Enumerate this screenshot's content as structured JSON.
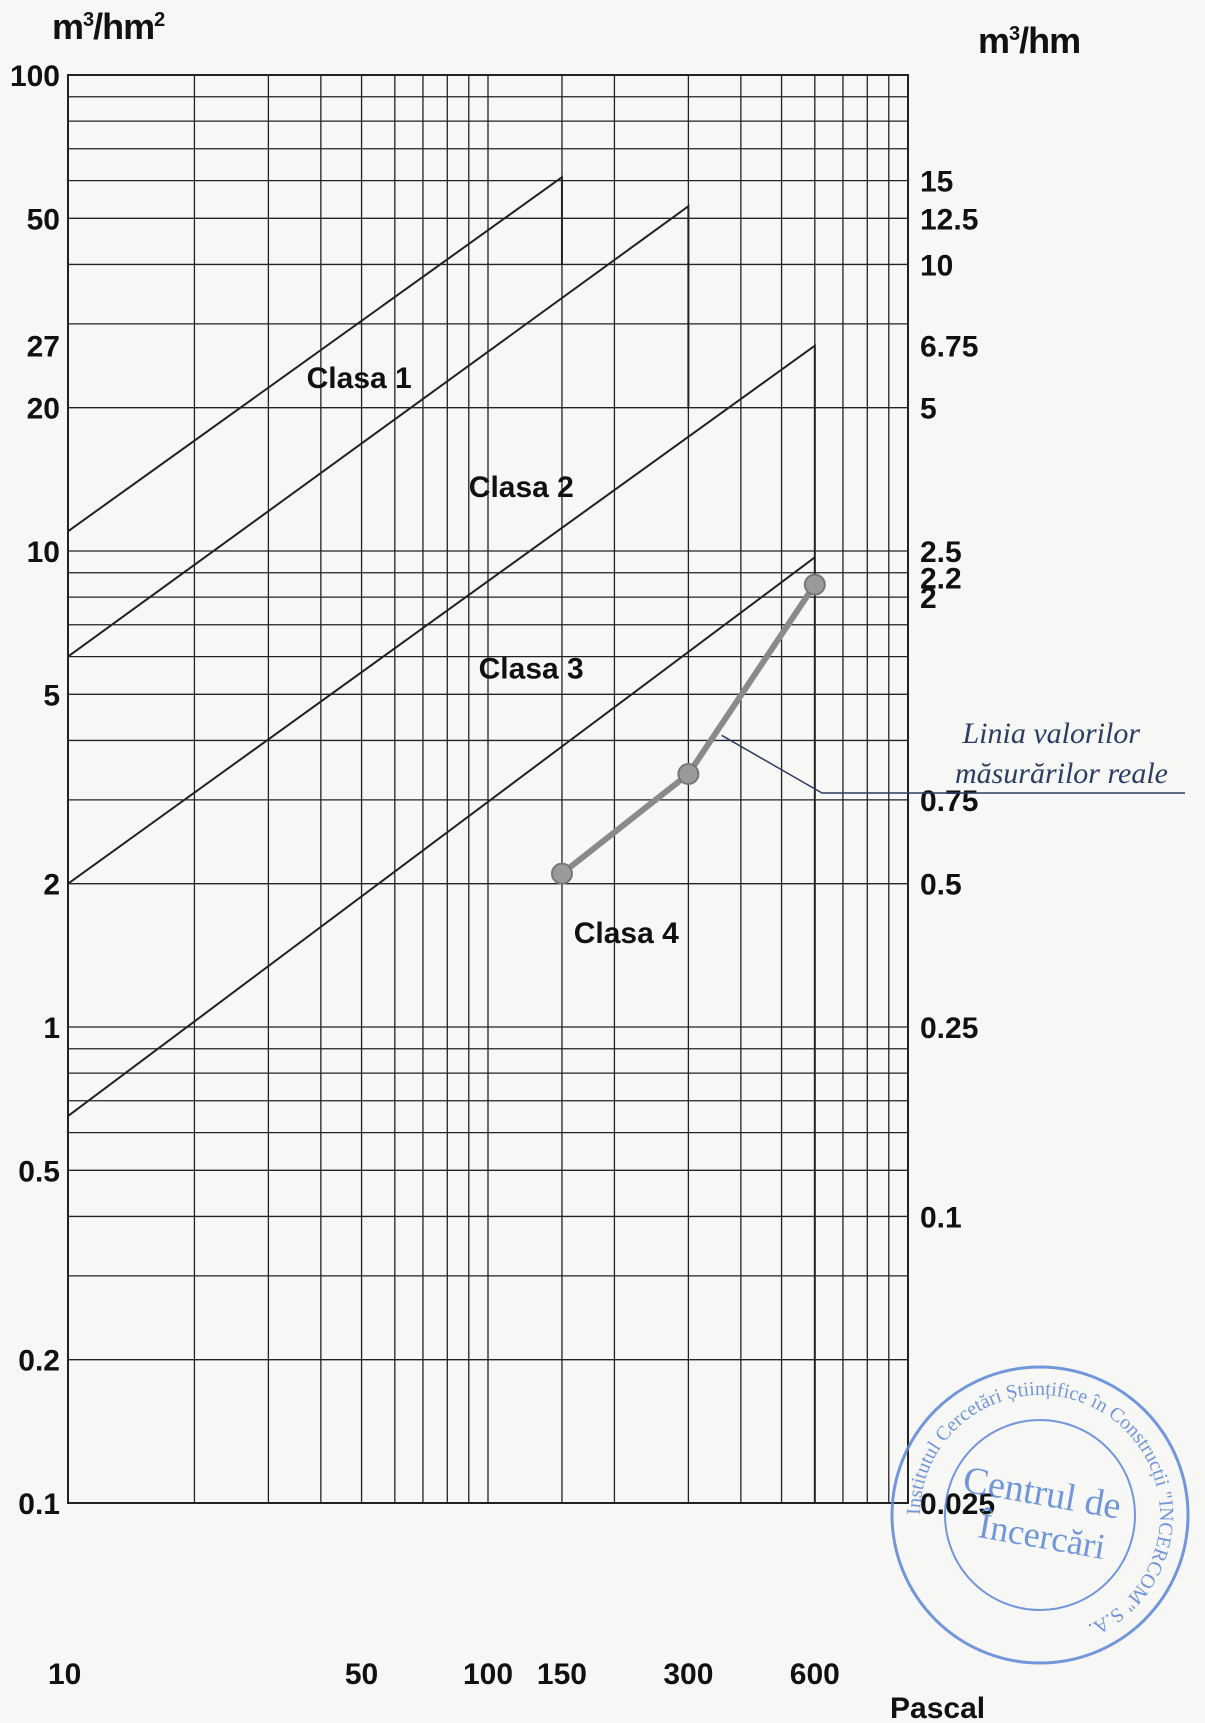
{
  "left_unit": {
    "base": "m",
    "sup1": "3",
    "mid": "/hm",
    "sup2": "2"
  },
  "right_unit": {
    "base": "m",
    "sup1": "3",
    "mid": "/hm",
    "sup2": ""
  },
  "x_unit": "Pascal",
  "stamp": {
    "ring": "Institutul Cercetări Științifice în Construcții \"INCERCOM\" S.A.",
    "center_line1": "Centrul de",
    "center_line2": "Încercări"
  },
  "colors": {
    "grid": "#222222",
    "class_line": "#222222",
    "measured": "#8a8a8a",
    "annotation": "#2b3d63",
    "stamp": "#5b86d6"
  },
  "chart_data": {
    "type": "line",
    "x_scale": "log",
    "y_scale": "log",
    "xlim": [
      10,
      1000
    ],
    "ylim": [
      0.1,
      100
    ],
    "x_ticks": [
      {
        "value": 10,
        "label": "10"
      },
      {
        "value": 50,
        "label": "50"
      },
      {
        "value": 100,
        "label": "100"
      },
      {
        "value": 150,
        "label": "150"
      },
      {
        "value": 300,
        "label": "300"
      },
      {
        "value": 600,
        "label": "600"
      }
    ],
    "y_ticks_left": [
      {
        "value": 100,
        "label": "100"
      },
      {
        "value": 50,
        "label": "50"
      },
      {
        "value": 27,
        "label": "27"
      },
      {
        "value": 20,
        "label": "20"
      },
      {
        "value": 10,
        "label": "10"
      },
      {
        "value": 5,
        "label": "5"
      },
      {
        "value": 2,
        "label": "2"
      },
      {
        "value": 1,
        "label": "1"
      },
      {
        "value": 0.5,
        "label": "0.5"
      },
      {
        "value": 0.2,
        "label": "0.2"
      },
      {
        "value": 0.1,
        "label": "0.1"
      }
    ],
    "y_ticks_right": [
      {
        "value": 60,
        "label": "15"
      },
      {
        "value": 50,
        "label": "12.5"
      },
      {
        "value": 40,
        "label": "10"
      },
      {
        "value": 27,
        "label": "6.75"
      },
      {
        "value": 20,
        "label": "5"
      },
      {
        "value": 10,
        "label": "2.5"
      },
      {
        "value": 8.8,
        "label": "2.2"
      },
      {
        "value": 8,
        "label": "2"
      },
      {
        "value": 3,
        "label": "0.75"
      },
      {
        "value": 2,
        "label": "0.5"
      },
      {
        "value": 1,
        "label": "0.25"
      },
      {
        "value": 0.4,
        "label": "0.1"
      },
      {
        "value": 0.1,
        "label": "0.025"
      }
    ],
    "grid_x": [
      10,
      20,
      30,
      40,
      50,
      60,
      70,
      80,
      90,
      100,
      150,
      200,
      300,
      400,
      500,
      600,
      700,
      800,
      900,
      1000
    ],
    "grid_y": [
      0.1,
      0.2,
      0.3,
      0.4,
      0.5,
      0.6,
      0.7,
      0.8,
      0.9,
      1,
      2,
      3,
      4,
      5,
      6,
      7,
      8,
      9,
      10,
      20,
      30,
      40,
      50,
      60,
      70,
      80,
      90,
      100
    ],
    "class_lines": [
      {
        "x": [
          10,
          150
        ],
        "y": [
          11,
          61
        ],
        "drop_to": 40
      },
      {
        "x": [
          10,
          300
        ],
        "y": [
          6,
          53
        ],
        "drop_to": 20
      },
      {
        "x": [
          10,
          600
        ],
        "y": [
          2,
          27
        ],
        "drop_to": 0.1
      },
      {
        "x": [
          10,
          600
        ],
        "y": [
          0.65,
          9.7
        ],
        "drop_to": null
      }
    ],
    "class_labels": [
      {
        "text": "Clasa 1",
        "x": 37,
        "y": 22
      },
      {
        "text": "Clasa 2",
        "x": 90,
        "y": 13
      },
      {
        "text": "Clasa 3",
        "x": 95,
        "y": 5.4
      },
      {
        "text": "Clasa 4",
        "x": 160,
        "y": 1.5
      }
    ],
    "series": [
      {
        "name": "",
        "x": [
          150,
          300,
          600
        ],
        "y": [
          2.1,
          3.4,
          8.5
        ]
      }
    ],
    "annotation": {
      "line1": "Linia valorilor",
      "line2": "măsurărilor reale",
      "points_to": {
        "x": 360,
        "y": 4.1
      }
    }
  }
}
